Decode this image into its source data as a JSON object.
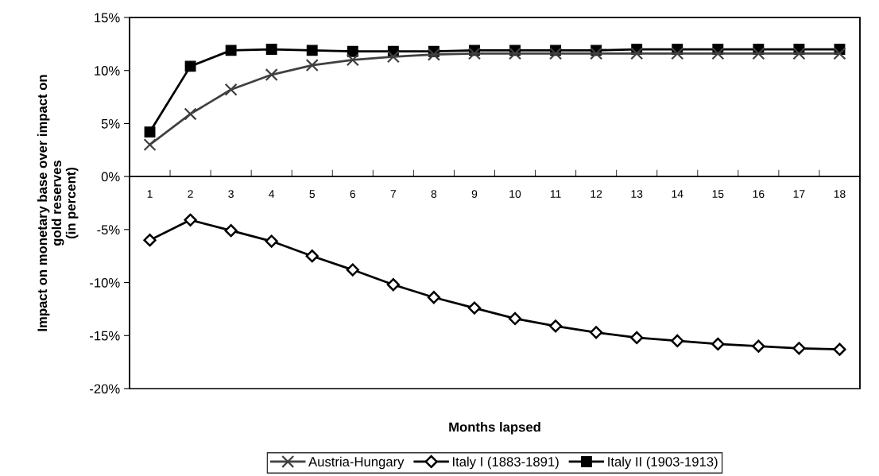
{
  "chart_data": {
    "type": "line",
    "xlabel": "Months lapsed",
    "ylabel": "Impact on monetary base over impact on\ngold reserves\n(in percent)",
    "categories": [
      "1",
      "2",
      "3",
      "4",
      "5",
      "6",
      "7",
      "8",
      "9",
      "10",
      "11",
      "12",
      "13",
      "14",
      "15",
      "16",
      "17",
      "18"
    ],
    "series": [
      {
        "name": "Austria-Hungary",
        "color": "#404040",
        "marker": "cross",
        "values": [
          3.0,
          5.9,
          8.2,
          9.6,
          10.5,
          11.0,
          11.3,
          11.5,
          11.6,
          11.6,
          11.6,
          11.6,
          11.6,
          11.6,
          11.6,
          11.6,
          11.6,
          11.6
        ]
      },
      {
        "name": "Italy I (1883-1891)",
        "color": "#000000",
        "marker": "diamond",
        "values": [
          -6.0,
          -4.1,
          -5.1,
          -6.1,
          -7.5,
          -8.8,
          -10.2,
          -11.4,
          -12.4,
          -13.4,
          -14.1,
          -14.7,
          -15.2,
          -15.5,
          -15.8,
          -16.0,
          -16.2,
          -16.3
        ]
      },
      {
        "name": "Italy II (1903-1913)",
        "color": "#000000",
        "marker": "square",
        "values": [
          4.2,
          10.4,
          11.9,
          12.0,
          11.9,
          11.8,
          11.8,
          11.8,
          11.9,
          11.9,
          11.9,
          11.9,
          12.0,
          12.0,
          12.0,
          12.0,
          12.0,
          12.0
        ]
      }
    ],
    "ylim": [
      -20,
      15
    ],
    "yticks": [
      {
        "value": -20,
        "label": "-20%"
      },
      {
        "value": -15,
        "label": "-15%"
      },
      {
        "value": -10,
        "label": "-10%"
      },
      {
        "value": -5,
        "label": "-5%"
      },
      {
        "value": 0,
        "label": "0%"
      },
      {
        "value": 5,
        "label": "5%"
      },
      {
        "value": 10,
        "label": "10%"
      },
      {
        "value": 15,
        "label": "15%"
      }
    ],
    "grid": false,
    "legend": "bottom",
    "line_style": "solid"
  }
}
